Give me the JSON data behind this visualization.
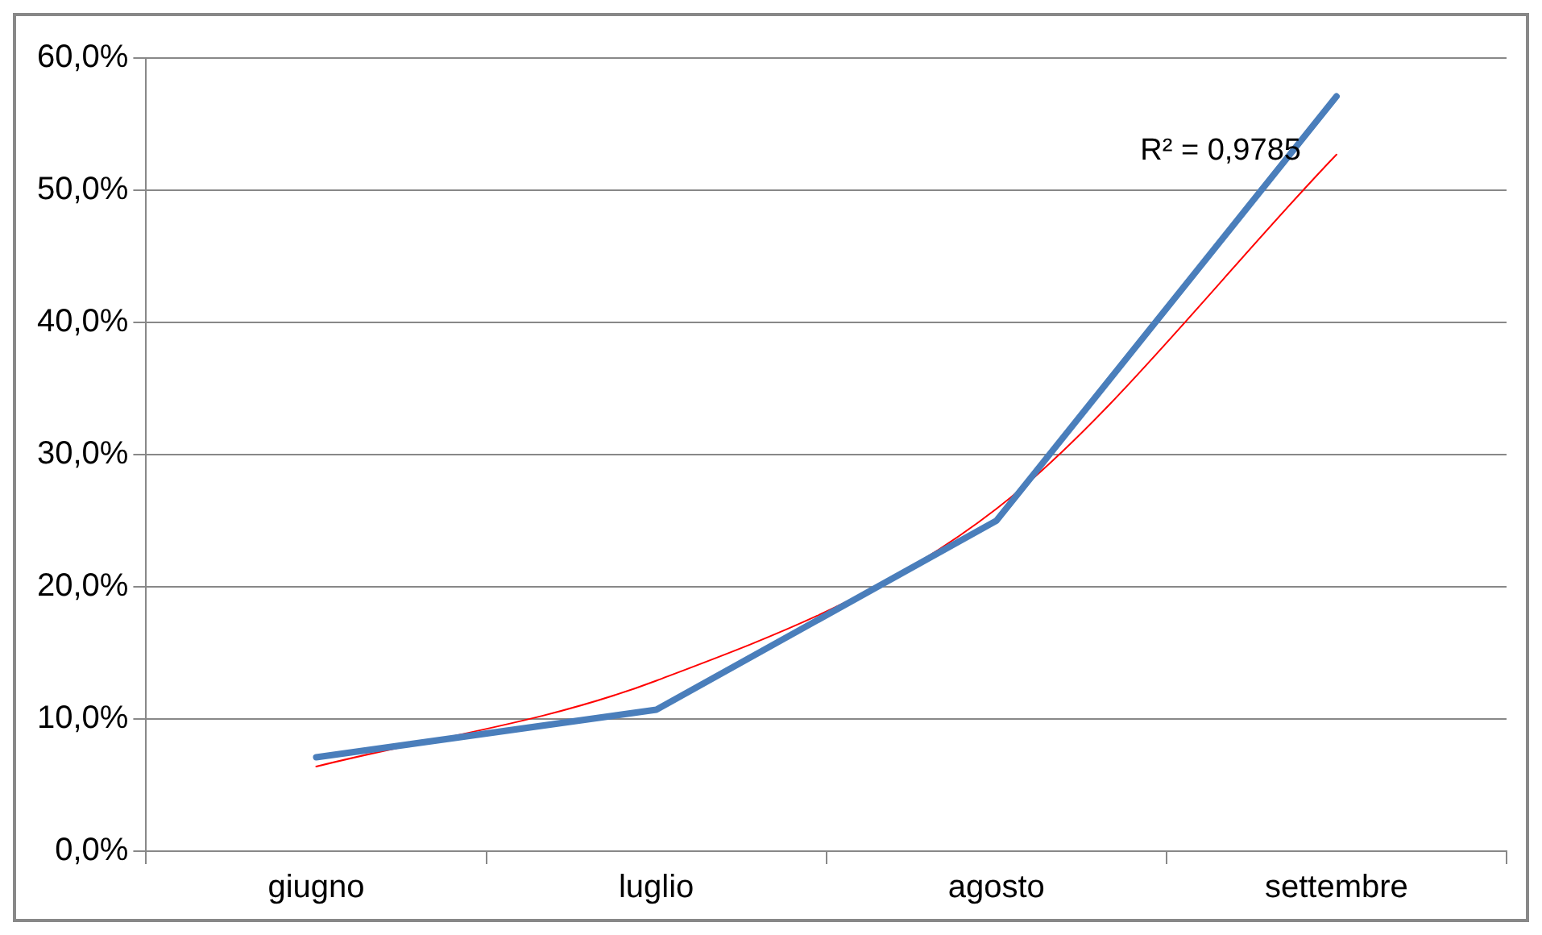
{
  "chart_data": {
    "type": "line",
    "categories": [
      "giugno",
      "luglio",
      "agosto",
      "settembre"
    ],
    "series": [
      {
        "color": "#4a7ebb",
        "values": [
          7.1,
          10.7,
          25.0,
          57.1
        ]
      },
      {
        "type": "line",
        "color": "#ff0000",
        "values": [
          6.4,
          12.9,
          25.9,
          52.7
        ]
      }
    ],
    "ylim": [
      0,
      60
    ],
    "yticks": [
      {
        "value": 0,
        "label": "0,0%"
      },
      {
        "value": 10,
        "label": "10,0%"
      },
      {
        "value": 20,
        "label": "20,0%"
      },
      {
        "value": 30,
        "label": "30,0%"
      },
      {
        "value": 40,
        "label": "40,0%"
      },
      {
        "value": 50,
        "label": "50,0%"
      },
      {
        "value": 60,
        "label": "60,0%"
      }
    ],
    "grid": "y",
    "marker": "none",
    "line_style": "solid",
    "annotations": [
      "R² = 0,9785"
    ]
  }
}
